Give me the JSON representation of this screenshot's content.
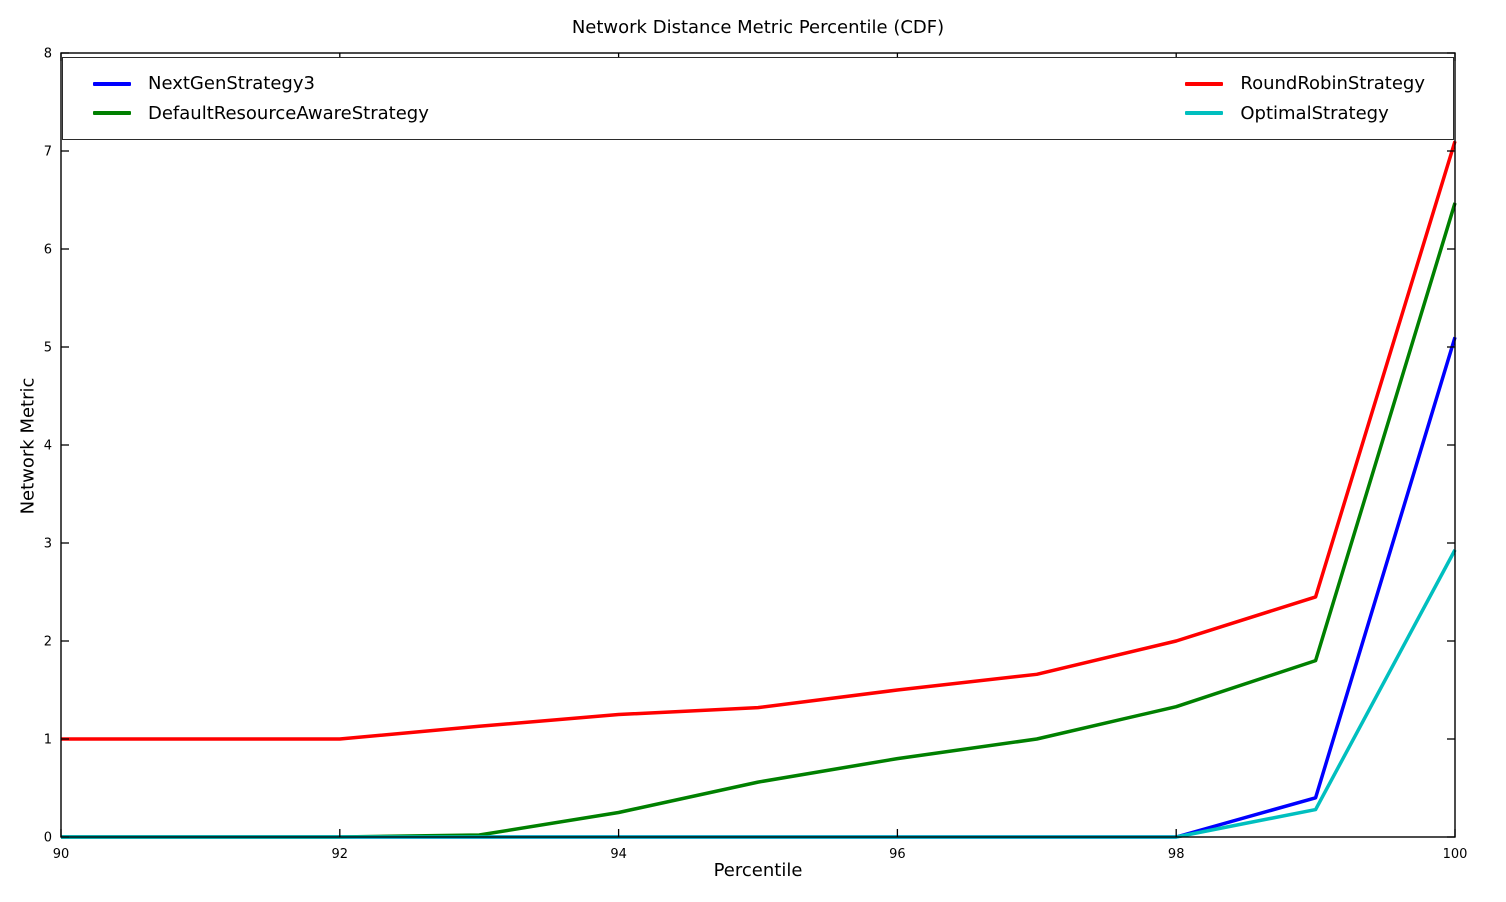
{
  "colors": {
    "background": "#ffffff",
    "axis": "#000000",
    "text": "#000000",
    "legend_border": "#2b2b2b"
  },
  "chart_data": {
    "type": "line",
    "title": "Network Distance Metric Percentile (CDF)",
    "xlabel": "Percentile",
    "ylabel": "Network Metric",
    "xlim": [
      90,
      100
    ],
    "ylim": [
      0,
      8
    ],
    "x_ticks": [
      90,
      92,
      94,
      96,
      98,
      100
    ],
    "y_ticks": [
      0,
      1,
      2,
      3,
      4,
      5,
      6,
      7,
      8
    ],
    "grid": false,
    "legend_position": "top-inside-expanded-2-columns",
    "line_width": 3.5,
    "x": [
      90,
      91,
      92,
      93,
      94,
      95,
      96,
      97,
      98,
      99,
      100
    ],
    "series": [
      {
        "name": "NextGenStrategy3",
        "color": "#0000ff",
        "values": [
          0,
          0,
          0,
          0,
          0,
          0,
          0,
          0,
          0,
          0.4,
          5.1
        ]
      },
      {
        "name": "DefaultResourceAwareStrategy",
        "color": "#008000",
        "values": [
          0,
          0,
          0,
          0.02,
          0.25,
          0.56,
          0.8,
          1.0,
          1.33,
          1.8,
          6.47
        ]
      },
      {
        "name": "RoundRobinStrategy",
        "color": "#ff0000",
        "values": [
          1.0,
          1.0,
          1.0,
          1.13,
          1.25,
          1.32,
          1.5,
          1.66,
          2.0,
          2.45,
          7.1
        ]
      },
      {
        "name": "OptimalStrategy",
        "color": "#00bfbf",
        "values": [
          0,
          0,
          0,
          0,
          0,
          0,
          0,
          0,
          0,
          0.28,
          2.93
        ]
      }
    ],
    "legend_columns": [
      [
        "NextGenStrategy3",
        "DefaultResourceAwareStrategy"
      ],
      [
        "RoundRobinStrategy",
        "OptimalStrategy"
      ]
    ]
  }
}
